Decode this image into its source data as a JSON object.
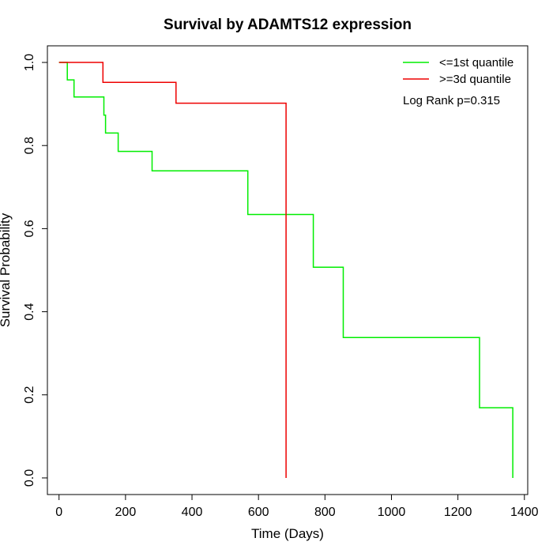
{
  "chart_data": {
    "type": "line",
    "title": "Survival by ADAMTS12 expression",
    "xlabel": "Time (Days)",
    "ylabel": "Survival Probability",
    "xlim": [
      -35,
      1410
    ],
    "ylim": [
      -0.04,
      1.04
    ],
    "xticks": [
      0,
      200,
      400,
      600,
      800,
      1000,
      1200,
      1400
    ],
    "yticks": [
      0.0,
      0.2,
      0.4,
      0.6,
      0.8,
      1.0
    ],
    "xtick_labels": [
      "0",
      "200",
      "400",
      "600",
      "800",
      "1000",
      "1200",
      "1400"
    ],
    "ytick_labels": [
      "0.0",
      "0.2",
      "0.4",
      "0.6",
      "0.8",
      "1.0"
    ],
    "grid": false,
    "legend_position": "top-right",
    "annotation": "Log Rank p=0.315",
    "series": [
      {
        "name": "<=1st quantile",
        "color": "#00ee00",
        "step": true,
        "x": [
          0,
          25,
          25,
          45,
          45,
          135,
          135,
          140,
          140,
          178,
          178,
          280,
          280,
          568,
          568,
          765,
          765,
          855,
          855,
          1265,
          1265,
          1365,
          1365
        ],
        "y": [
          1.0,
          1.0,
          0.958,
          0.958,
          0.917,
          0.917,
          0.873,
          0.873,
          0.83,
          0.83,
          0.786,
          0.786,
          0.739,
          0.739,
          0.634,
          0.634,
          0.507,
          0.507,
          0.338,
          0.338,
          0.169,
          0.169,
          0.0
        ]
      },
      {
        "name": ">=3d quantile",
        "color": "#ee0000",
        "step": true,
        "x": [
          0,
          132,
          132,
          352,
          352,
          683,
          683
        ],
        "y": [
          1.0,
          1.0,
          0.952,
          0.952,
          0.902,
          0.902,
          0.0
        ]
      }
    ]
  }
}
